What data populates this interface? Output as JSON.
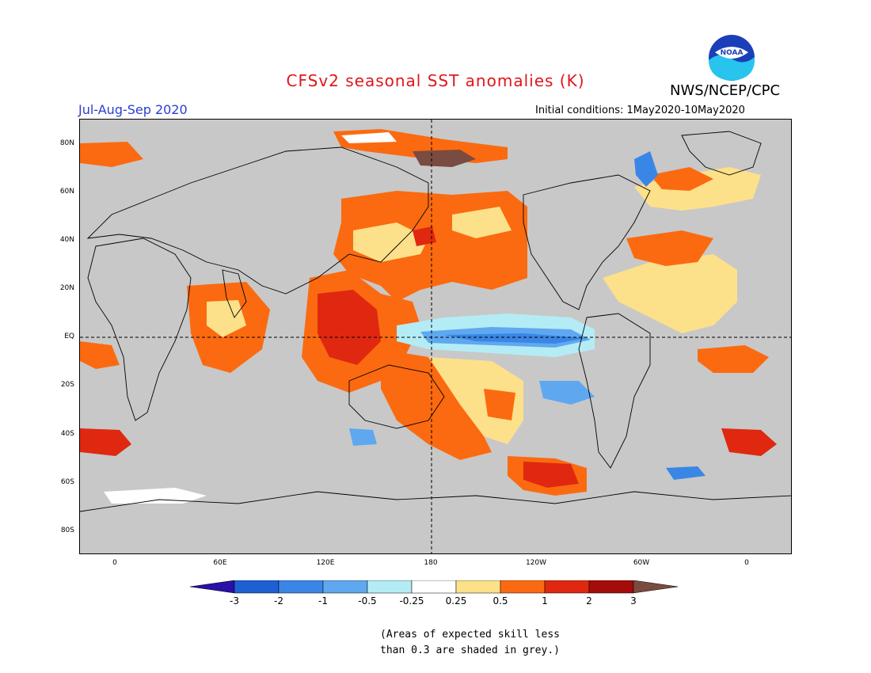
{
  "header": {
    "title": "CFSv2 seasonal SST anomalies (K)",
    "org": "NWS/NCEP/CPC",
    "season": "Jul-Aug-Sep 2020",
    "initial_conditions": "Initial conditions: 1May2020-10May2020",
    "logo_text": "NOAA",
    "logo_icon": "noaa-logo-icon"
  },
  "map": {
    "land_color": "#c8c8c8",
    "lat_ticks": [
      "80N",
      "60N",
      "40N",
      "20N",
      "EQ",
      "20S",
      "40S",
      "60S",
      "80S"
    ],
    "lon_ticks": [
      "0",
      "60E",
      "120E",
      "180",
      "120W",
      "60W",
      "0"
    ],
    "equator_line": "dashed",
    "dateline": "dashed"
  },
  "colorbar": {
    "labels": [
      "-3",
      "-2",
      "-1",
      "-0.5",
      "-0.25",
      "0.25",
      "0.5",
      "1",
      "2",
      "3"
    ],
    "colors": [
      "#2a0fa8",
      "#1f5fd4",
      "#3a86e6",
      "#5fa8f0",
      "#b4ecf6",
      "#ffffff",
      "#fde08a",
      "#fb6a10",
      "#e02810",
      "#a40c0c",
      "#7a4b40"
    ]
  },
  "footnote": {
    "line1": "(Areas of expected skill less",
    "line2": "than 0.3 are shaded in grey.)"
  }
}
